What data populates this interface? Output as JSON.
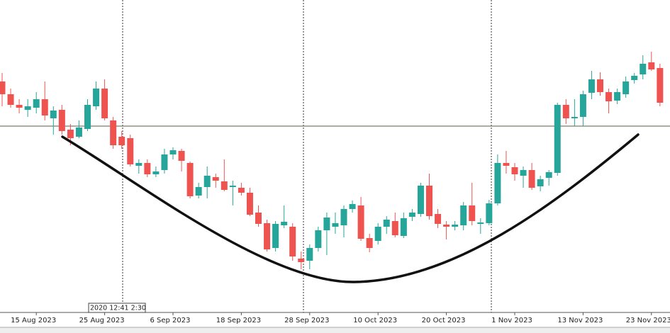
{
  "chart_data": {
    "type": "candlestick",
    "categories": [
      null,
      null,
      null,
      null,
      "15 Aug 2023",
      null,
      null,
      null,
      null,
      null,
      null,
      null,
      "25 Aug 2023",
      null,
      null,
      null,
      null,
      null,
      null,
      null,
      "6 Sep 2023",
      null,
      null,
      null,
      null,
      null,
      null,
      null,
      "18 Sep 2023",
      null,
      null,
      null,
      null,
      null,
      null,
      null,
      "28 Sep 2023",
      null,
      null,
      null,
      null,
      null,
      null,
      null,
      "10 Oct 2023",
      null,
      null,
      null,
      null,
      null,
      null,
      null,
      "20 Oct 2023",
      null,
      null,
      null,
      null,
      null,
      null,
      null,
      "1 Nov 2023",
      null,
      null,
      null,
      null,
      null,
      null,
      null,
      "13 Nov 2023",
      null,
      null,
      null,
      null,
      null,
      null,
      null,
      "23 Nov 2023",
      null
    ],
    "open": [
      355,
      337,
      322,
      315,
      318,
      330,
      303,
      315,
      287,
      277,
      288,
      320,
      345,
      300,
      277,
      275,
      236,
      240,
      224,
      230,
      252,
      257,
      240,
      194,
      206,
      220,
      214,
      206,
      205,
      198,
      170,
      155,
      120,
      152,
      150,
      105,
      102,
      120,
      145,
      150,
      152,
      175,
      180,
      134,
      130,
      150,
      158,
      137,
      164,
      168,
      208,
      168,
      153,
      150,
      152,
      180,
      154,
      155,
      183,
      240,
      234,
      222,
      230,
      207,
      219,
      226,
      322,
      303,
      305,
      339,
      358,
      340,
      328,
      337,
      357,
      365,
      382,
      374
    ],
    "high": [
      367,
      345,
      330,
      330,
      340,
      355,
      320,
      322,
      295,
      300,
      330,
      355,
      358,
      305,
      285,
      280,
      245,
      245,
      235,
      260,
      262,
      260,
      242,
      212,
      235,
      225,
      245,
      215,
      212,
      205,
      180,
      160,
      158,
      180,
      155,
      115,
      125,
      150,
      170,
      170,
      180,
      187,
      192,
      140,
      155,
      165,
      170,
      170,
      175,
      212,
      225,
      175,
      158,
      158,
      185,
      212,
      162,
      188,
      252,
      257,
      240,
      235,
      240,
      222,
      230,
      325,
      330,
      330,
      342,
      370,
      368,
      345,
      345,
      362,
      367,
      392,
      397,
      380
    ],
    "low": [
      320,
      318,
      310,
      305,
      310,
      300,
      280,
      280,
      265,
      275,
      285,
      315,
      300,
      260,
      260,
      235,
      225,
      220,
      220,
      225,
      245,
      228,
      190,
      190,
      190,
      205,
      200,
      180,
      194,
      165,
      150,
      115,
      115,
      148,
      102,
      90,
      90,
      115,
      110,
      140,
      135,
      170,
      130,
      114,
      125,
      140,
      135,
      134,
      158,
      164,
      160,
      148,
      132,
      145,
      145,
      152,
      140,
      152,
      180,
      225,
      215,
      205,
      202,
      200,
      208,
      222,
      295,
      292,
      292,
      330,
      335,
      310,
      323,
      332,
      352,
      358,
      370,
      320
    ],
    "close": [
      337,
      322,
      318,
      320,
      330,
      307,
      314,
      285,
      275,
      290,
      322,
      345,
      303,
      265,
      265,
      238,
      240,
      224,
      228,
      252,
      258,
      243,
      193,
      206,
      222,
      215,
      202,
      208,
      198,
      167,
      154,
      118,
      154,
      157,
      108,
      100,
      120,
      145,
      163,
      155,
      175,
      182,
      133,
      120,
      150,
      160,
      138,
      162,
      170,
      208,
      165,
      154,
      150,
      153,
      180,
      158,
      156,
      183,
      240,
      236,
      224,
      230,
      205,
      217,
      227,
      322,
      303,
      305,
      337,
      358,
      340,
      327,
      340,
      355,
      363,
      380,
      372,
      325
    ],
    "ylim": [
      30,
      470
    ],
    "hline": 292,
    "up_color": "#26a69a",
    "down_color": "#ef5350",
    "annotation": "2020 12:41 2:30"
  }
}
